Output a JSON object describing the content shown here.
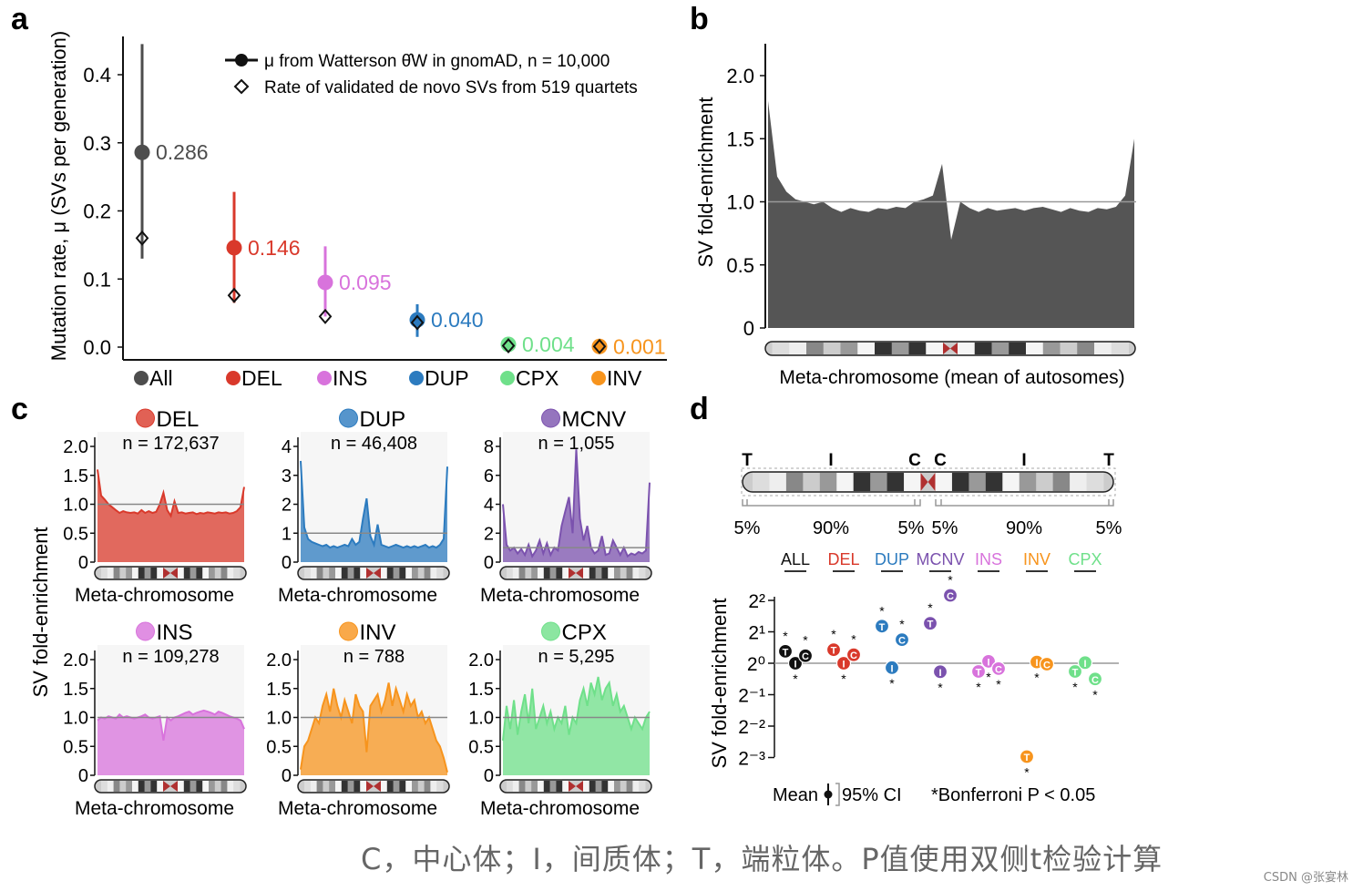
{
  "colors": {
    "All": "#4d4d4d",
    "DEL": "#d9392b",
    "INS": "#d873dc",
    "DUP": "#2c7bbf",
    "CPX": "#6fe08a",
    "INV": "#f7941d",
    "MCNV": "#7b52ae",
    "ALL": "#111111"
  },
  "panel_labels": [
    "a",
    "b",
    "c",
    "d"
  ],
  "chart_data": [
    {
      "id": "a",
      "type": "scatter",
      "ylabel": "Mutation rate, μ (SVs per generation)",
      "ylim": [
        0,
        0.4
      ],
      "yticks": [
        "0.0",
        "0.1",
        "0.2",
        "0.3",
        "0.4"
      ],
      "legend": {
        "placement": "top-right",
        "entries": [
          "μ from Watterson θ̂W in gnomAD, n = 10,000",
          "Rate of validated de novo SVs from 519 quartets"
        ]
      },
      "categories": [
        "All",
        "DEL",
        "INS",
        "DUP",
        "CPX",
        "INV"
      ],
      "mu": [
        0.286,
        0.146,
        0.095,
        0.04,
        0.004,
        0.001
      ],
      "mu_labels": [
        "0.286",
        "0.146",
        "0.095",
        "0.040",
        "0.004",
        "0.001"
      ],
      "ci_low": [
        0.13,
        0.065,
        0.045,
        0.015,
        0.001,
        0.0
      ],
      "ci_high": [
        0.445,
        0.228,
        0.148,
        0.063,
        0.007,
        0.002
      ],
      "de_novo": [
        0.16,
        0.076,
        0.045,
        0.036,
        0.002,
        0.001
      ]
    },
    {
      "id": "b",
      "type": "area",
      "ylabel": "SV fold-enrichment",
      "xlabel": "Meta-chromosome (mean of autosomes)",
      "ylim": [
        0,
        2.0
      ],
      "yticks": [
        "0",
        "0.5",
        "1.0",
        "1.5",
        "2.0"
      ],
      "reference": 1.0,
      "color": "#555555",
      "values": [
        1.8,
        1.2,
        1.08,
        1.02,
        1.0,
        0.98,
        1.0,
        0.95,
        0.92,
        0.95,
        0.93,
        0.92,
        0.95,
        0.94,
        0.96,
        0.95,
        1.0,
        1.02,
        1.05,
        1.3,
        0.7,
        1.0,
        0.95,
        0.92,
        0.95,
        0.93,
        0.94,
        0.95,
        0.93,
        0.95,
        0.96,
        0.94,
        0.92,
        0.95,
        0.93,
        0.92,
        0.95,
        0.94,
        0.96,
        1.05,
        1.5
      ]
    },
    {
      "id": "c",
      "type": "area",
      "ylabel": "SV fold-enrichment",
      "xlabel": "Meta-chromosome",
      "panels": [
        {
          "name": "DEL",
          "n": "n = 172,637",
          "ylim": [
            0,
            2
          ],
          "yticks": [
            "0",
            "0.5",
            "1.0",
            "1.5",
            "2.0"
          ],
          "reference": 1,
          "values": [
            1.6,
            1.15,
            1.08,
            1.0,
            0.95,
            0.9,
            0.85,
            0.88,
            0.86,
            0.85,
            0.86,
            0.84,
            0.9,
            0.85,
            0.88,
            0.85,
            0.87,
            1.0,
            1.2,
            0.9,
            0.8,
            1.05,
            0.85,
            0.86,
            0.84,
            0.85,
            0.86,
            0.83,
            0.85,
            0.84,
            0.86,
            0.85,
            0.84,
            0.86,
            0.85,
            0.86,
            0.84,
            0.85,
            0.88,
            0.95,
            1.3
          ]
        },
        {
          "name": "DUP",
          "n": "n = 46,408",
          "ylim": [
            0,
            4
          ],
          "yticks": [
            "0",
            "1",
            "2",
            "3",
            "4"
          ],
          "reference": 1,
          "values": [
            3.5,
            1.2,
            0.8,
            0.7,
            0.65,
            0.6,
            0.55,
            0.6,
            0.5,
            0.55,
            0.5,
            0.55,
            0.6,
            0.55,
            0.8,
            0.6,
            0.7,
            1.5,
            2.2,
            0.9,
            0.6,
            1.3,
            0.6,
            0.55,
            0.5,
            0.55,
            0.6,
            0.55,
            0.5,
            0.55,
            0.5,
            0.55,
            0.5,
            0.55,
            0.6,
            0.5,
            0.55,
            0.5,
            0.6,
            0.8,
            3.3
          ]
        },
        {
          "name": "MCNV",
          "n": "n = 1,055",
          "ylim": [
            0,
            8
          ],
          "yticks": [
            "0",
            "2",
            "4",
            "6",
            "8"
          ],
          "reference": 1,
          "values": [
            4.0,
            1.2,
            0.8,
            1.0,
            0.6,
            0.9,
            0.5,
            1.2,
            0.4,
            0.8,
            1.5,
            0.6,
            1.3,
            0.5,
            1.0,
            0.8,
            2.5,
            3.5,
            4.5,
            2.0,
            7.8,
            3.0,
            1.5,
            2.5,
            1.0,
            0.6,
            0.8,
            1.8,
            0.5,
            0.6,
            1.5,
            1.0,
            0.5,
            1.0,
            0.4,
            0.6,
            0.5,
            0.7,
            0.6,
            0.8,
            5.5
          ]
        },
        {
          "name": "INS",
          "n": "n = 109,278",
          "ylim": [
            0,
            2
          ],
          "yticks": [
            "0",
            "0.5",
            "1.0",
            "1.5",
            "2.0"
          ],
          "reference": 1,
          "values": [
            0.95,
            1.0,
            0.98,
            1.02,
            1.0,
            0.98,
            1.05,
            1.0,
            1.02,
            1.0,
            0.98,
            1.0,
            1.02,
            1.05,
            1.0,
            0.98,
            1.0,
            1.02,
            0.6,
            1.0,
            0.95,
            1.0,
            1.02,
            1.05,
            1.08,
            1.1,
            1.05,
            1.08,
            1.1,
            1.12,
            1.1,
            1.08,
            1.05,
            1.1,
            1.08,
            1.05,
            1.02,
            1.0,
            0.98,
            0.95,
            0.8
          ]
        },
        {
          "name": "INV",
          "n": "n = 788",
          "ylim": [
            0,
            2
          ],
          "yticks": [
            "0",
            "0.5",
            "1.0",
            "1.5",
            "2.0"
          ],
          "reference": 1,
          "values": [
            0.1,
            0.5,
            0.6,
            0.8,
            1.0,
            0.9,
            1.2,
            1.4,
            1.1,
            1.5,
            1.2,
            1.0,
            1.3,
            1.1,
            0.9,
            1.4,
            1.2,
            1.1,
            0.4,
            1.2,
            1.3,
            1.4,
            1.1,
            1.3,
            1.6,
            1.2,
            1.5,
            1.3,
            1.1,
            1.4,
            1.2,
            1.3,
            1.0,
            1.1,
            0.9,
            1.0,
            0.8,
            0.6,
            0.5,
            0.3,
            0.05
          ]
        },
        {
          "name": "CPX",
          "n": "n = 5,295",
          "ylim": [
            0,
            2
          ],
          "yticks": [
            "0",
            "0.5",
            "1.0",
            "1.5",
            "2.0"
          ],
          "reference": 1,
          "values": [
            0.6,
            1.2,
            0.8,
            1.3,
            0.7,
            1.1,
            1.4,
            0.9,
            1.5,
            0.8,
            1.0,
            1.2,
            0.9,
            1.1,
            0.8,
            1.0,
            0.9,
            1.2,
            0.7,
            1.0,
            0.9,
            1.3,
            1.5,
            1.2,
            1.6,
            1.4,
            1.7,
            1.3,
            1.5,
            1.6,
            1.2,
            1.4,
            1.1,
            1.2,
            1.0,
            0.8,
            1.0,
            0.9,
            0.8,
            1.0,
            1.1
          ]
        }
      ]
    },
    {
      "id": "d",
      "type": "scatter",
      "ylabel": "SV fold-enrichment",
      "yscale": "log2",
      "ylim": [
        -3,
        2
      ],
      "yticks": [
        "2²",
        "2¹",
        "2⁰",
        "2⁻¹",
        "2⁻²",
        "2⁻³"
      ],
      "region_labels": [
        "T",
        "I",
        "C",
        "C",
        "I",
        "T"
      ],
      "region_pct": [
        "5%",
        "90%",
        "5%",
        "5%",
        "90%",
        "5%"
      ],
      "categories": [
        "ALL",
        "DEL",
        "DUP",
        "MCNV",
        "INS",
        "INV",
        "CPX"
      ],
      "regions": [
        "T",
        "I",
        "C"
      ],
      "log2_enrichment": [
        [
          0.38,
          0.0,
          0.24
        ],
        [
          0.43,
          0.0,
          0.27
        ],
        [
          1.18,
          -0.14,
          0.75
        ],
        [
          1.27,
          -0.27,
          2.16
        ],
        [
          -0.26,
          0.06,
          -0.17
        ],
        [
          -2.97,
          0.04,
          -0.03
        ],
        [
          -0.26,
          0.02,
          -0.5
        ]
      ],
      "significant": [
        [
          true,
          true,
          true
        ],
        [
          true,
          true,
          true
        ],
        [
          true,
          true,
          true
        ],
        [
          true,
          true,
          true
        ],
        [
          true,
          true,
          true
        ],
        [
          true,
          true,
          false
        ],
        [
          true,
          false,
          true
        ]
      ],
      "legend": {
        "mean": "Mean",
        "ci": "95% CI",
        "bonferroni": "*Bonferroni P < 0.05"
      }
    }
  ],
  "caption": "C，中心体；I，间质体；T，端粒体。P值使用双侧t检验计算",
  "watermark": "CSDN @张宴林"
}
